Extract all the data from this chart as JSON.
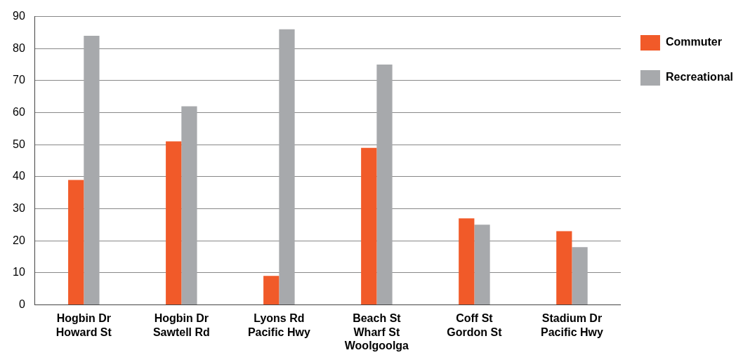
{
  "chart_data": {
    "type": "bar",
    "categories": [
      "Hogbin Dr\nHoward St",
      "Hogbin Dr\nSawtell Rd",
      "Lyons Rd\nPacific Hwy",
      "Beach St\nWharf St\nWoolgoolga",
      "Coff St\nGordon St",
      "Stadium Dr\nPacific Hwy"
    ],
    "series": [
      {
        "name": "Commuter",
        "color": "#f15a29",
        "values": [
          39,
          51,
          9,
          49,
          27,
          23
        ]
      },
      {
        "name": "Recreational",
        "color": "#a7a9ac",
        "values": [
          84,
          62,
          86,
          75,
          25,
          18
        ]
      }
    ],
    "ylim": [
      0,
      90
    ],
    "yticks": [
      0,
      10,
      20,
      30,
      40,
      50,
      60,
      70,
      80,
      90
    ],
    "grid": "y",
    "legend": "top right"
  }
}
